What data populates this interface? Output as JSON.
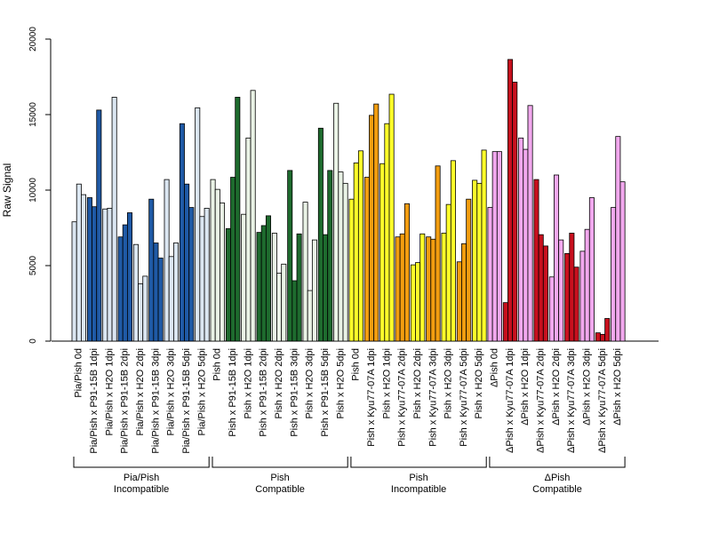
{
  "chart_data": {
    "type": "bar",
    "title": "",
    "xlabel": "",
    "ylabel": "Raw Signal",
    "ylim": [
      0,
      20000
    ],
    "yticks": [
      0,
      5000,
      10000,
      15000,
      20000
    ],
    "grid": false,
    "bars_per_category": 3,
    "categories": [
      "Pia/Pish 0d",
      "Pia/Pish x P91-15B 1dpi",
      "Pia/Pish x H2O 1dpi",
      "Pia/Pish x P91-15B 2dpi",
      "Pia/Pish x H2O 2dpi",
      "Pia/Pish x P91-15B 3dpi",
      "Pia/Pish x H2O 3dpi",
      "Pia/Pish x P91-15B 5dpi",
      "Pia/Pish x H2O 5dpi",
      "Pish 0d",
      "Pish x P91-15B 1dpi",
      "Pish x H2O 1dpi",
      "Pish x P91-15B 2dpi",
      "Pish x H2O 2dpi",
      "Pish x P91-15B 3dpi",
      "Pish x H2O 3dpi",
      "Pish x P91-15B 5dpi",
      "Pish x H2O 5dpi",
      "Pish 0d",
      "Pish x Kyu77-07A 1dpi",
      "Pish x H2O 1dpi",
      "Pish x Kyu77-07A 2dpi",
      "Pish x H2O 2dpi",
      "Pish x Kyu77-07A 3dpi",
      "Pish x H2O 3dpi",
      "Pish x Kyu77-07A 5dpi",
      "Pish x H2O 5dpi",
      "ΔPish 0d",
      "ΔPish x Kyu77-07A 1dpi",
      "ΔPish x H2O 1dpi",
      "ΔPish x Kyu77-07A 2dpi",
      "ΔPish x H2O 2dpi",
      "ΔPish x Kyu77-07A 3dpi",
      "ΔPish x H2O 3dpi",
      "ΔPish x Kyu77-07A 5dpi",
      "ΔPish x H2O 5dpi"
    ],
    "values": [
      [
        7900,
        10400,
        9700
      ],
      [
        9500,
        8900,
        15300
      ],
      [
        8750,
        8800,
        16150
      ],
      [
        6900,
        7700,
        8500
      ],
      [
        6400,
        3800,
        4300
      ],
      [
        9400,
        6500,
        5500
      ],
      [
        10700,
        5600,
        6500
      ],
      [
        14400,
        10400,
        8850
      ],
      [
        15450,
        8250,
        8800
      ],
      [
        10700,
        10050,
        9150
      ],
      [
        7450,
        10850,
        16150
      ],
      [
        8400,
        13450,
        16600
      ],
      [
        7200,
        7650,
        8300
      ],
      [
        7150,
        4500,
        5100
      ],
      [
        11300,
        4000,
        7100
      ],
      [
        9200,
        3350,
        6700
      ],
      [
        14100,
        7050,
        11300
      ],
      [
        15750,
        11200,
        10450
      ],
      [
        9400,
        11800,
        12600
      ],
      [
        10850,
        14950,
        15700
      ],
      [
        11750,
        14400,
        16350
      ],
      [
        6900,
        7100,
        9100
      ],
      [
        5050,
        5200,
        7100
      ],
      [
        6900,
        6750,
        11600
      ],
      [
        7150,
        9050,
        11950
      ],
      [
        5250,
        6450,
        9400
      ],
      [
        10650,
        10450,
        12650
      ],
      [
        8850,
        12550,
        12550
      ],
      [
        2550,
        18650,
        17150
      ],
      [
        13450,
        12700,
        15600
      ],
      [
        10700,
        7050,
        6300
      ],
      [
        4250,
        11000,
        6700
      ],
      [
        5800,
        7150,
        4900
      ],
      [
        5950,
        7400,
        9500
      ],
      [
        550,
        450,
        1500
      ],
      [
        8850,
        13550,
        10550
      ]
    ],
    "bar_colors": [
      "#dbe6f1",
      "#1f5aa6",
      "#dbe6f1",
      "#1f5aa6",
      "#dbe6f1",
      "#1f5aa6",
      "#dbe6f1",
      "#1f5aa6",
      "#dbe6f1",
      "#eaf3e6",
      "#1e6b2e",
      "#eaf3e6",
      "#1e6b2e",
      "#eaf3e6",
      "#1e6b2e",
      "#eaf3e6",
      "#1e6b2e",
      "#eaf3e6",
      "#ffff2a",
      "#f29d10",
      "#ffff2a",
      "#f29d10",
      "#ffff2a",
      "#f29d10",
      "#ffff2a",
      "#f29d10",
      "#ffff2a",
      "#f2a8ee",
      "#c8101e",
      "#f2a8ee",
      "#c8101e",
      "#f2a8ee",
      "#c8101e",
      "#f2a8ee",
      "#c8101e",
      "#f2a8ee"
    ],
    "groups": [
      {
        "line1": "Pia/Pish",
        "line2": "Incompatible",
        "first": 0,
        "last": 8
      },
      {
        "line1": "Pish",
        "line2": "Compatible",
        "first": 9,
        "last": 17
      },
      {
        "line1": "Pish",
        "line2": "Incompatible",
        "first": 18,
        "last": 26
      },
      {
        "line1": "ΔPish",
        "line2": "Compatible",
        "first": 27,
        "last": 35
      }
    ]
  }
}
